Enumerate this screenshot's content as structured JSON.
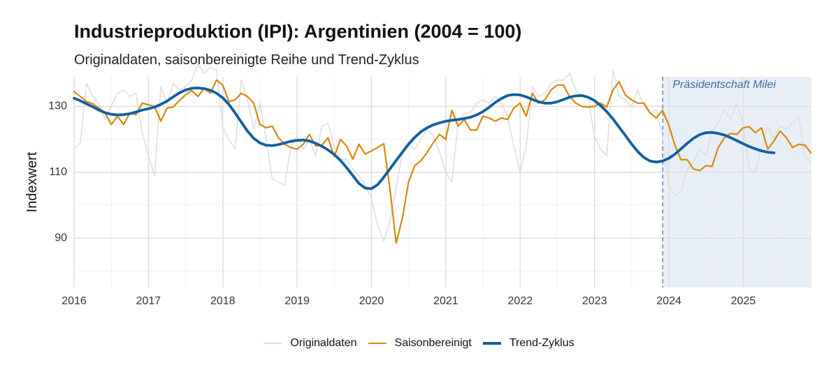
{
  "chart_data": {
    "type": "line",
    "title": "Industrieproduktion (IPI): Argentinien (2004 = 100)",
    "subtitle": "Originaldaten, saisonbereinigte Reihe und Trend-Zyklus",
    "xlabel": "",
    "ylabel": "Indexwert",
    "xlim": [
      2016.0,
      2025.917
    ],
    "ylim": [
      75,
      139
    ],
    "x_ticks": [
      2016,
      2017,
      2018,
      2019,
      2020,
      2021,
      2022,
      2023,
      2024,
      2025
    ],
    "x_tick_labels": [
      "2016",
      "2017",
      "2018",
      "2019",
      "2020",
      "2021",
      "2022",
      "2023",
      "2024",
      "2025"
    ],
    "y_ticks": [
      90,
      110,
      130
    ],
    "y_tick_labels": [
      "90",
      "110",
      "130"
    ],
    "grid": true,
    "legend_position": "bottom",
    "annotations": [
      {
        "type": "shaded_region",
        "x_start": 2023.917,
        "x_end": 2025.917,
        "color": "#e8eef6"
      },
      {
        "type": "vline",
        "x": 2023.917,
        "style": "dashed",
        "color": "#6b8fb8"
      },
      {
        "type": "text",
        "x": 2024.05,
        "y": 136.5,
        "text": "Präsidentschaft Milei",
        "color": "#3e6fa0"
      }
    ],
    "series": [
      {
        "name": "Originaldaten",
        "color": "#dddddd",
        "width": 1.5,
        "x_start": 2016.0,
        "x_step": 0.0833,
        "values": [
          117,
          119,
          137,
          133,
          131,
          126,
          130,
          134,
          135,
          133,
          134,
          122,
          115,
          109,
          136,
          131,
          137,
          135,
          136,
          138,
          143,
          140,
          142,
          141,
          124,
          120,
          117,
          138,
          132,
          123,
          131,
          120,
          108,
          107,
          106,
          118,
          121,
          117,
          120,
          115,
          124,
          125,
          118,
          114,
          114,
          111,
          109,
          106,
          102,
          94,
          89,
          95,
          105,
          116,
          118,
          117,
          120,
          123,
          121,
          116,
          110,
          107,
          125,
          128,
          128,
          131,
          132,
          131,
          133,
          131,
          127,
          118,
          110,
          118,
          136,
          133,
          134,
          137,
          138,
          138,
          140,
          135,
          133,
          133,
          121,
          117,
          115,
          141,
          133,
          132,
          130,
          135,
          130,
          128,
          129,
          121,
          106,
          103,
          104,
          111,
          113,
          117,
          115,
          122,
          125,
          129,
          126,
          131,
          125,
          111,
          110,
          118,
          124,
          120,
          124,
          123,
          125,
          127,
          115,
          113
        ]
      },
      {
        "name": "Saisonbereinigt",
        "color": "#d8890b",
        "width": 2.2,
        "x_start": 2016.0,
        "x_step": 0.0833,
        "values": [
          134.5,
          133.0,
          131.5,
          130.8,
          129.5,
          128.0,
          124.5,
          127.0,
          124.5,
          128.0,
          127.5,
          131.0,
          130.5,
          130.0,
          125.5,
          129.5,
          129.8,
          131.8,
          133.5,
          134.8,
          133.0,
          135.5,
          134.0,
          138.0,
          136.5,
          131.5,
          132.0,
          134.0,
          133.0,
          131.0,
          124.5,
          123.5,
          124.0,
          120.5,
          118.5,
          117.5,
          117.0,
          118.5,
          121.5,
          118.0,
          118.2,
          120.5,
          114.8,
          120.0,
          118.0,
          114.0,
          118.5,
          115.5,
          116.5,
          117.5,
          118.7,
          105.0,
          88.5,
          96.0,
          107.0,
          112.0,
          113.5,
          116.0,
          119.0,
          121.5,
          120.0,
          128.8,
          124.0,
          126.0,
          122.8,
          122.8,
          127.0,
          126.5,
          125.5,
          126.5,
          126.0,
          129.5,
          131.0,
          127.0,
          134.0,
          131.0,
          132.0,
          135.0,
          136.5,
          136.5,
          133.0,
          131.0,
          130.0,
          129.8,
          130.0,
          131.0,
          129.8,
          135.0,
          137.5,
          133.5,
          132.0,
          131.0,
          131.0,
          128.0,
          126.5,
          128.8,
          124.5,
          118.2,
          113.8,
          113.8,
          111.0,
          110.5,
          112.0,
          111.8,
          117.5,
          120.5,
          121.8,
          121.5,
          123.5,
          123.8,
          122.0,
          123.5,
          117.0,
          119.5,
          122.5,
          120.5,
          117.5,
          118.5,
          118.2,
          115.8
        ]
      },
      {
        "name": "Trend-Zyklus",
        "color": "#0f5fa0",
        "width": 3.8,
        "x_start": 2016.0,
        "x_step": 0.0833,
        "values": [
          132.5,
          131.7,
          130.8,
          129.9,
          128.9,
          128.1,
          127.6,
          127.4,
          127.5,
          127.8,
          128.3,
          128.9,
          129.3,
          129.8,
          130.6,
          131.6,
          132.9,
          134.1,
          135.0,
          135.5,
          135.6,
          135.4,
          134.9,
          134.0,
          132.6,
          130.6,
          128.0,
          125.2,
          122.5,
          120.3,
          118.9,
          118.2,
          118.1,
          118.4,
          118.9,
          119.4,
          119.7,
          119.8,
          119.5,
          118.8,
          117.9,
          116.8,
          115.4,
          113.6,
          111.4,
          109.0,
          106.6,
          105.2,
          105.0,
          106.2,
          108.5,
          111.0,
          113.6,
          116.1,
          118.5,
          120.6,
          122.3,
          123.5,
          124.4,
          125.0,
          125.5,
          125.8,
          126.0,
          126.3,
          126.7,
          127.4,
          128.4,
          129.7,
          131.2,
          132.4,
          133.3,
          133.6,
          133.5,
          132.9,
          132.1,
          131.4,
          131.0,
          131.0,
          131.4,
          132.1,
          132.8,
          133.2,
          133.3,
          132.8,
          131.8,
          130.3,
          128.4,
          126.2,
          123.7,
          121.2,
          118.6,
          116.3,
          114.5,
          113.4,
          113.1,
          113.4,
          114.2,
          115.5,
          117.1,
          118.8,
          120.3,
          121.4,
          122.0,
          122.1,
          121.8,
          121.3,
          120.5,
          119.6,
          118.7,
          117.8,
          117.1,
          116.5,
          116.1,
          115.9
        ]
      }
    ]
  }
}
